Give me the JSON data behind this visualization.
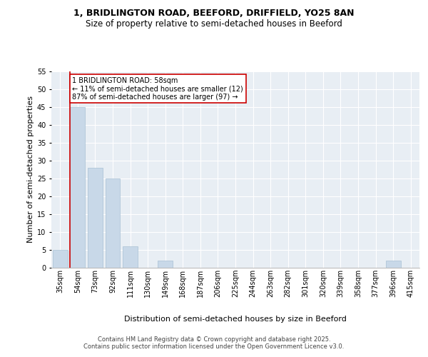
{
  "title_line1": "1, BRIDLINGTON ROAD, BEEFORD, DRIFFIELD, YO25 8AN",
  "title_line2": "Size of property relative to semi-detached houses in Beeford",
  "xlabel": "Distribution of semi-detached houses by size in Beeford",
  "ylabel": "Number of semi-detached properties",
  "categories": [
    "35sqm",
    "54sqm",
    "73sqm",
    "92sqm",
    "111sqm",
    "130sqm",
    "149sqm",
    "168sqm",
    "187sqm",
    "206sqm",
    "225sqm",
    "244sqm",
    "263sqm",
    "282sqm",
    "301sqm",
    "320sqm",
    "339sqm",
    "358sqm",
    "377sqm",
    "396sqm",
    "415sqm"
  ],
  "values": [
    5,
    45,
    28,
    25,
    6,
    0,
    2,
    0,
    0,
    0,
    0,
    0,
    0,
    0,
    0,
    0,
    0,
    0,
    0,
    2,
    0
  ],
  "bar_color": "#c8d8e8",
  "bar_edge_color": "#a8c0d4",
  "property_bin_index": 1,
  "property_label": "1 BRIDLINGTON ROAD: 58sqm",
  "pct_smaller": "11% of semi-detached houses are smaller (12)",
  "pct_larger": "87% of semi-detached houses are larger (97)",
  "annotation_box_color": "#ffffff",
  "annotation_box_edge": "#cc0000",
  "red_line_color": "#cc0000",
  "ylim": [
    0,
    55
  ],
  "yticks": [
    0,
    5,
    10,
    15,
    20,
    25,
    30,
    35,
    40,
    45,
    50,
    55
  ],
  "background_color": "#e8eef4",
  "grid_color": "#ffffff",
  "footer": "Contains HM Land Registry data © Crown copyright and database right 2025.\nContains public sector information licensed under the Open Government Licence v3.0.",
  "title_fontsize": 9,
  "subtitle_fontsize": 8.5,
  "axis_label_fontsize": 8,
  "tick_fontsize": 7,
  "footer_fontsize": 6
}
